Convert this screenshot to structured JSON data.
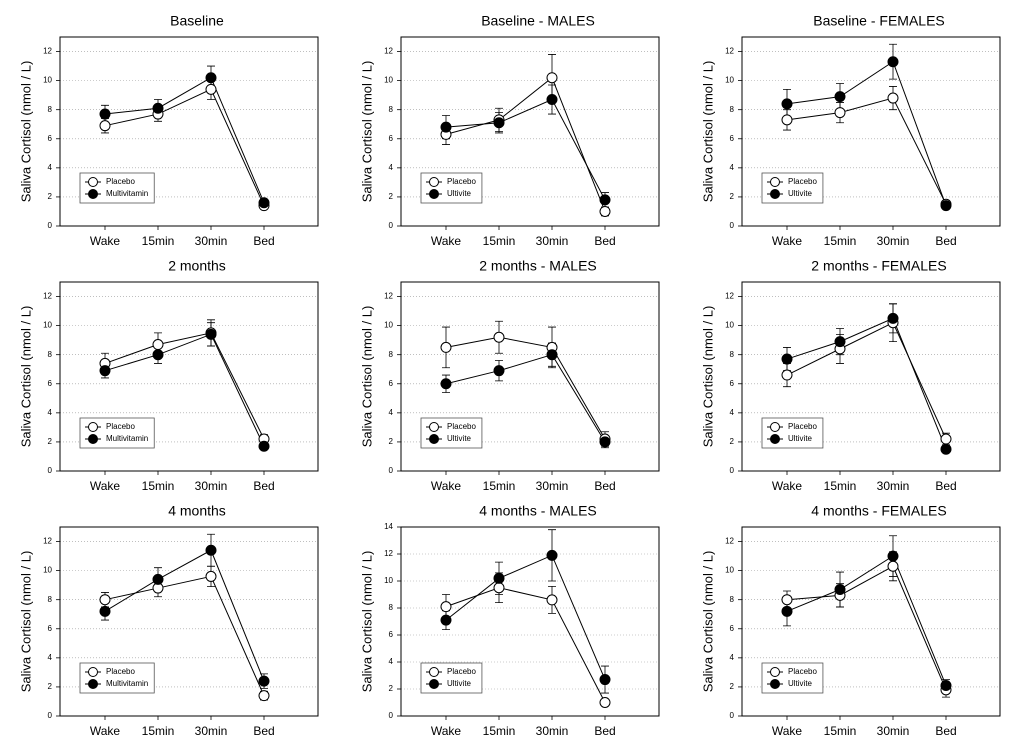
{
  "chart_data": [
    {
      "type": "line",
      "title": "Baseline",
      "ylabel": "Saliva Cortisol (nmol / L)",
      "categories": [
        "Wake",
        "15min",
        "30min",
        "Bed"
      ],
      "ylim": [
        0,
        13
      ],
      "yticks": [
        0,
        2,
        4,
        6,
        8,
        10,
        12
      ],
      "grid": true,
      "legend": "lower left",
      "series": [
        {
          "name": "Placebo",
          "color": "#ffffff",
          "values": [
            6.9,
            7.7,
            9.4,
            1.4
          ],
          "errors": [
            0.5,
            0.5,
            0.7,
            0.2
          ]
        },
        {
          "name": "Multivitamin",
          "color": "#000000",
          "values": [
            7.7,
            8.1,
            10.2,
            1.6
          ],
          "errors": [
            0.6,
            0.6,
            0.8,
            0.2
          ]
        }
      ]
    },
    {
      "type": "line",
      "title": "Baseline - MALES",
      "ylabel": "Saliva Cortisol (nmol / L)",
      "categories": [
        "Wake",
        "15min",
        "30min",
        "Bed"
      ],
      "ylim": [
        0,
        13
      ],
      "yticks": [
        0,
        2,
        4,
        6,
        8,
        10,
        12
      ],
      "grid": true,
      "legend": "lower left",
      "series": [
        {
          "name": "Placebo",
          "color": "#ffffff",
          "values": [
            6.3,
            7.3,
            10.2,
            1.0
          ],
          "errors": [
            0.7,
            0.8,
            1.6,
            0.3
          ]
        },
        {
          "name": "Ultivite",
          "color": "#000000",
          "values": [
            6.8,
            7.1,
            8.7,
            1.8
          ],
          "errors": [
            0.8,
            0.7,
            1.0,
            0.5
          ]
        }
      ]
    },
    {
      "type": "line",
      "title": "Baseline - FEMALES",
      "ylabel": "Saliva Cortisol (nmol / L)",
      "categories": [
        "Wake",
        "15min",
        "30min",
        "Bed"
      ],
      "ylim": [
        0,
        13
      ],
      "yticks": [
        0,
        2,
        4,
        6,
        8,
        10,
        12
      ],
      "grid": true,
      "legend": "lower left",
      "series": [
        {
          "name": "Placebo",
          "color": "#ffffff",
          "values": [
            7.3,
            7.8,
            8.8,
            1.5
          ],
          "errors": [
            0.7,
            0.7,
            0.8,
            0.2
          ]
        },
        {
          "name": "Ultivite",
          "color": "#000000",
          "values": [
            8.4,
            8.9,
            11.3,
            1.4
          ],
          "errors": [
            1.0,
            0.9,
            1.2,
            0.2
          ]
        }
      ]
    },
    {
      "type": "line",
      "title": "2 months",
      "ylabel": "Saliva Cortisol (nmol / L)",
      "categories": [
        "Wake",
        "15min",
        "30min",
        "Bed"
      ],
      "ylim": [
        0,
        13
      ],
      "yticks": [
        0,
        2,
        4,
        6,
        8,
        10,
        12
      ],
      "grid": true,
      "legend": "lower left",
      "series": [
        {
          "name": "Placebo",
          "color": "#ffffff",
          "values": [
            7.4,
            8.7,
            9.5,
            2.2
          ],
          "errors": [
            0.7,
            0.8,
            0.9,
            0.3
          ]
        },
        {
          "name": "Multivitamin",
          "color": "#000000",
          "values": [
            6.9,
            8.0,
            9.4,
            1.7
          ],
          "errors": [
            0.5,
            0.6,
            0.8,
            0.2
          ]
        }
      ]
    },
    {
      "type": "line",
      "title": "2 months - MALES",
      "ylabel": "Saliva Cortisol (nmol / L)",
      "categories": [
        "Wake",
        "15min",
        "30min",
        "Bed"
      ],
      "ylim": [
        0,
        13
      ],
      "yticks": [
        0,
        2,
        4,
        6,
        8,
        10,
        12
      ],
      "grid": true,
      "legend": "lower left",
      "series": [
        {
          "name": "Placebo",
          "color": "#ffffff",
          "values": [
            8.5,
            9.2,
            8.5,
            2.2
          ],
          "errors": [
            1.4,
            1.1,
            1.4,
            0.5
          ]
        },
        {
          "name": "Ultivite",
          "color": "#000000",
          "values": [
            6.0,
            6.9,
            8.0,
            2.0
          ],
          "errors": [
            0.6,
            0.7,
            0.8,
            0.4
          ]
        }
      ]
    },
    {
      "type": "line",
      "title": "2 months - FEMALES",
      "ylabel": "Saliva Cortisol (nmol / L)",
      "categories": [
        "Wake",
        "15min",
        "30min",
        "Bed"
      ],
      "ylim": [
        0,
        13
      ],
      "yticks": [
        0,
        2,
        4,
        6,
        8,
        10,
        12
      ],
      "grid": true,
      "legend": "lower left",
      "series": [
        {
          "name": "Placebo",
          "color": "#ffffff",
          "values": [
            6.6,
            8.4,
            10.2,
            2.2
          ],
          "errors": [
            0.8,
            1.0,
            1.3,
            0.4
          ]
        },
        {
          "name": "Ultivite",
          "color": "#000000",
          "values": [
            7.7,
            8.9,
            10.5,
            1.5
          ],
          "errors": [
            0.8,
            0.9,
            1.0,
            0.2
          ]
        }
      ]
    },
    {
      "type": "line",
      "title": "4 months",
      "ylabel": "Saliva Cortisol (nmol / L)",
      "categories": [
        "Wake",
        "15min",
        "30min",
        "Bed"
      ],
      "ylim": [
        0,
        13
      ],
      "yticks": [
        0,
        2,
        4,
        6,
        8,
        10,
        12
      ],
      "grid": true,
      "legend": "lower left",
      "series": [
        {
          "name": "Placebo",
          "color": "#ffffff",
          "values": [
            8.0,
            8.8,
            9.6,
            1.4
          ],
          "errors": [
            0.5,
            0.6,
            0.7,
            0.3
          ]
        },
        {
          "name": "Multivitamin",
          "color": "#000000",
          "values": [
            7.2,
            9.4,
            11.4,
            2.4
          ],
          "errors": [
            0.6,
            0.8,
            1.1,
            0.5
          ]
        }
      ]
    },
    {
      "type": "line",
      "title": "4 months - MALES",
      "ylabel": "Saliva Cortisol (nmol / L)",
      "categories": [
        "Wake",
        "15min",
        "30min",
        "Bed"
      ],
      "ylim": [
        0,
        14
      ],
      "yticks": [
        0,
        2,
        4,
        6,
        8,
        10,
        12,
        14
      ],
      "grid": true,
      "legend": "lower left",
      "series": [
        {
          "name": "Placebo",
          "color": "#ffffff",
          "values": [
            8.1,
            9.5,
            8.6,
            1.0
          ],
          "errors": [
            0.9,
            1.1,
            1.0,
            0.2
          ]
        },
        {
          "name": "Ultivite",
          "color": "#000000",
          "values": [
            7.1,
            10.2,
            11.9,
            2.7
          ],
          "errors": [
            0.7,
            1.2,
            1.9,
            1.0
          ]
        }
      ]
    },
    {
      "type": "line",
      "title": "4 months - FEMALES",
      "ylabel": "Saliva Cortisol (nmol / L)",
      "categories": [
        "Wake",
        "15min",
        "30min",
        "Bed"
      ],
      "ylim": [
        0,
        13
      ],
      "yticks": [
        0,
        2,
        4,
        6,
        8,
        10,
        12
      ],
      "grid": true,
      "legend": "lower left",
      "series": [
        {
          "name": "Placebo",
          "color": "#ffffff",
          "values": [
            8.0,
            8.3,
            10.3,
            1.8
          ],
          "errors": [
            0.6,
            0.8,
            1.0,
            0.5
          ]
        },
        {
          "name": "Ultivite",
          "color": "#000000",
          "values": [
            7.2,
            8.7,
            11.0,
            2.1
          ],
          "errors": [
            1.0,
            1.2,
            1.4,
            0.4
          ]
        }
      ]
    }
  ]
}
